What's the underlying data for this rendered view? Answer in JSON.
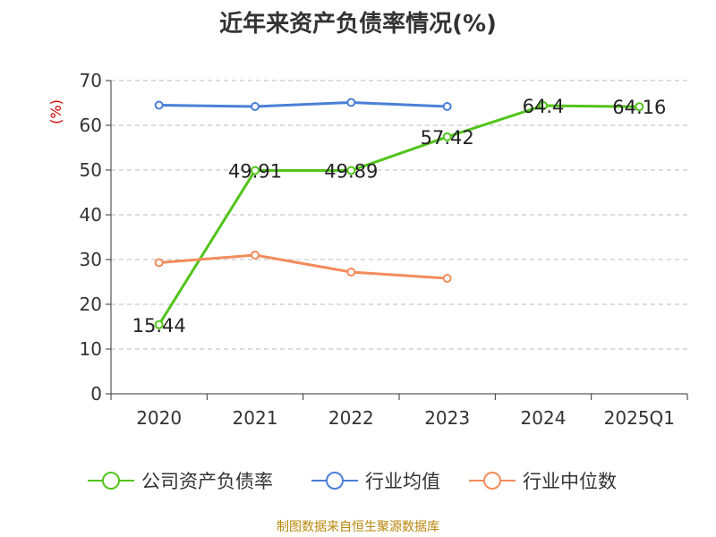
{
  "title": "近年来资产负债率情况(%)",
  "source": "制图数据来自恒生聚源数据库",
  "colors": {
    "company": "#52c41a",
    "industry_avg": "#4a7fd6",
    "industry_median": "#f28c5b",
    "ylabel": "#cc0000",
    "axis": "#333333",
    "grid": "#bbbbbb"
  },
  "chart_data": {
    "type": "line",
    "title": "近年来资产负债率情况(%)",
    "xlabel": "",
    "ylabel": "(%)",
    "categories": [
      "2020",
      "2021",
      "2022",
      "2023",
      "2024",
      "2025Q1"
    ],
    "ylim": [
      0,
      70
    ],
    "yticks": [
      0,
      10,
      20,
      30,
      40,
      50,
      60,
      70
    ],
    "grid": "horizontal dashed",
    "legend_position": "bottom",
    "series": [
      {
        "name": "公司资产负债率",
        "color": "#52c41a",
        "values": [
          15.44,
          49.91,
          49.89,
          57.42,
          64.4,
          64.16
        ],
        "labels": [
          "15.44",
          "49.91",
          "49.89",
          "57.42",
          "64.4",
          "64.16"
        ]
      },
      {
        "name": "行业均值",
        "color": "#4a7fd6",
        "values": [
          64.5,
          64.2,
          65.1,
          64.2,
          null,
          null
        ]
      },
      {
        "name": "行业中位数",
        "color": "#f28c5b",
        "values": [
          29.3,
          31.0,
          27.2,
          25.8,
          null,
          null
        ]
      }
    ]
  }
}
